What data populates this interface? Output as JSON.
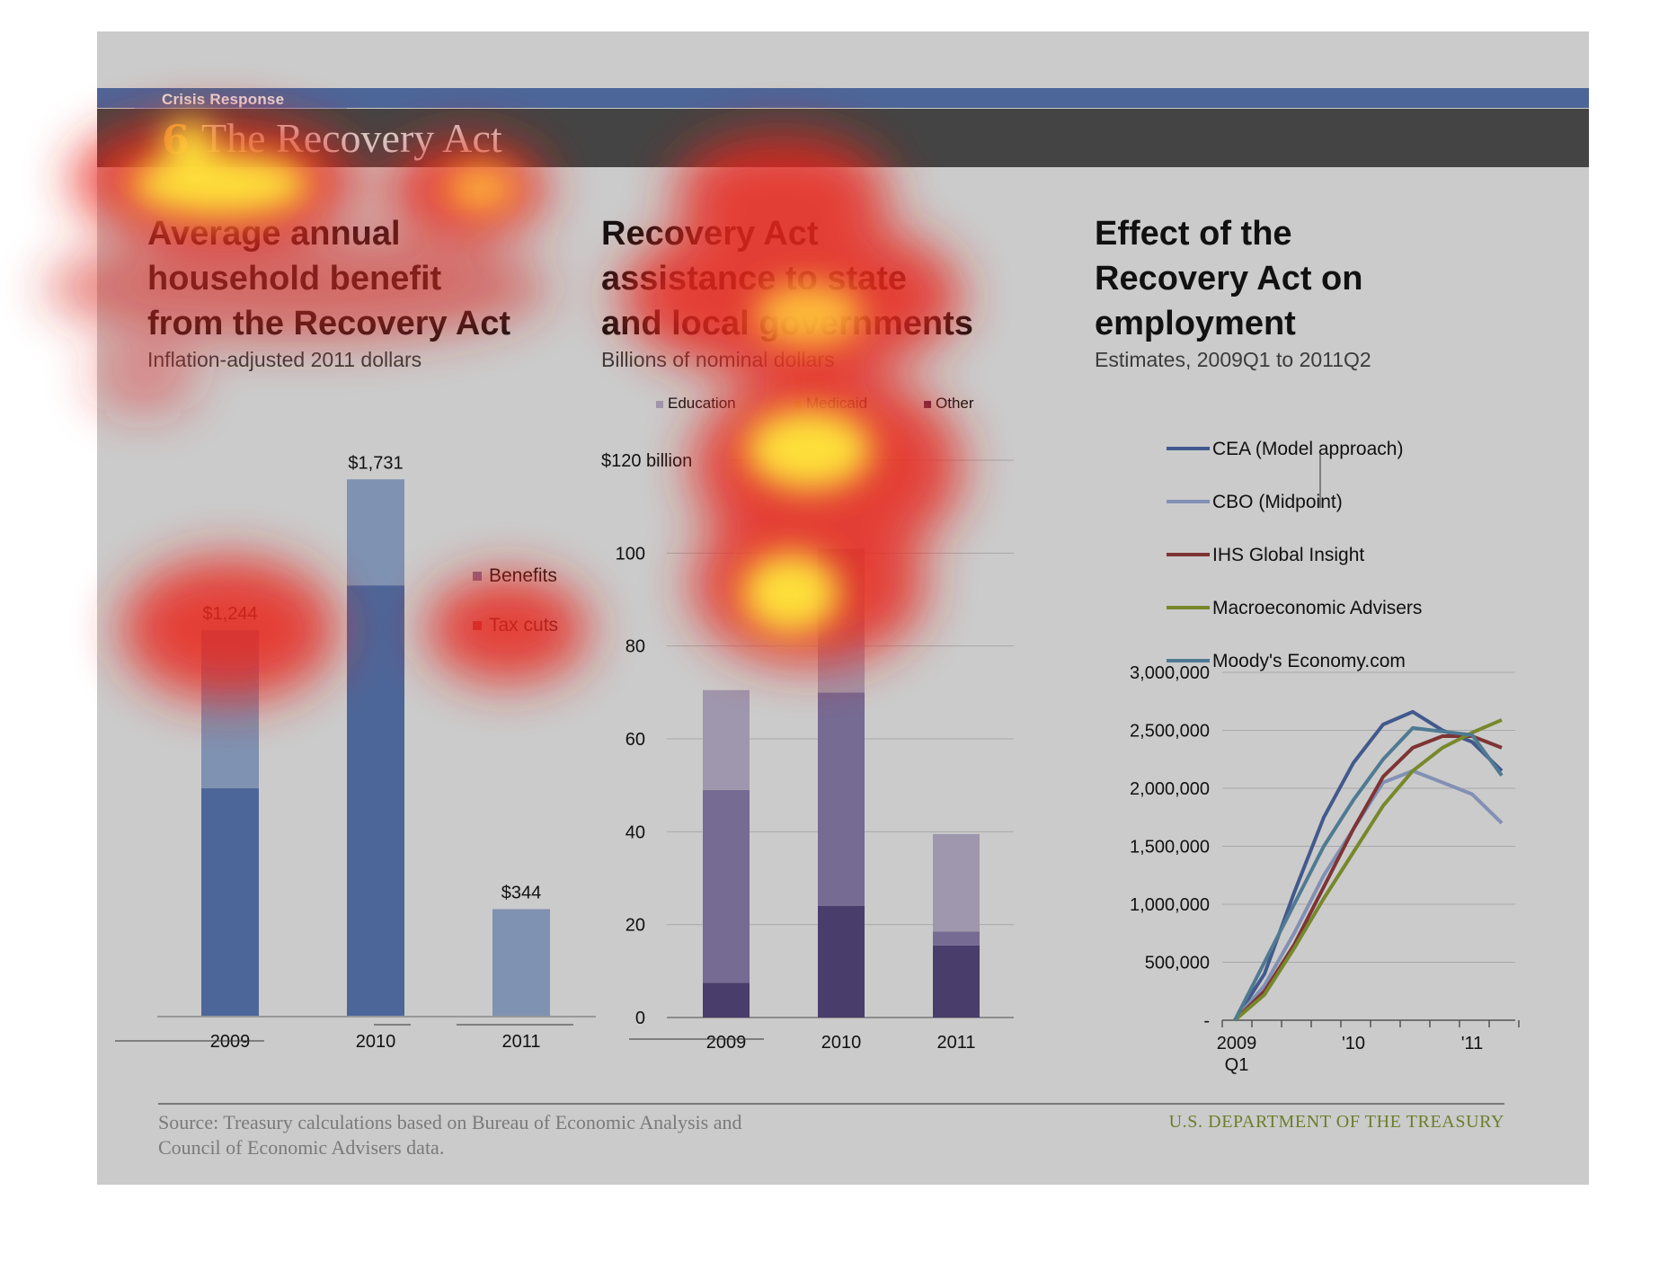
{
  "header": {
    "section_label": "Crisis Response",
    "slide_number": "6",
    "slide_title": "The Recovery Act"
  },
  "panels": [
    {
      "title": "Average annual household benefit from the Recovery Act",
      "title_lines": [
        "Average annual",
        "household benefit",
        "from the Recovery Act"
      ],
      "subtitle": "Inflation-adjusted 2011 dollars"
    },
    {
      "title": "Recovery Act assistance to state and local governments",
      "title_lines": [
        "Recovery Act",
        "assistance to state",
        "and local governments"
      ],
      "subtitle": "Billions of nominal dollars"
    },
    {
      "title": "Effect of the Recovery Act on employment",
      "title_lines": [
        "Effect of the",
        "Recovery Act on",
        "employment"
      ],
      "subtitle": "Estimates, 2009Q1 to 2011Q2"
    }
  ],
  "footer": {
    "source_line1": "Source: Treasury calculations based on Bureau of Economic Analysis and",
    "source_line2": "Council of Economic Advisers data.",
    "agency": "U.S. DEPARTMENT OF THE TREASURY"
  },
  "colors": {
    "slide_bg": "#cbcbcb",
    "top_band": "#4c6699",
    "title_band": "#444444",
    "slide_number": "#e8a640",
    "agency_text": "#6b7e2a"
  },
  "chart_data": [
    {
      "type": "bar",
      "stacked": true,
      "categories": [
        "2009",
        "2010",
        "2011"
      ],
      "series": [
        {
          "name": "Tax cuts",
          "color": "#4d6699",
          "values": [
            734,
            1389,
            0
          ]
        },
        {
          "name": "Benefits",
          "color": "#7f92b2",
          "values": [
            510,
            342,
            344
          ]
        }
      ],
      "totals": [
        1244,
        1731,
        344
      ],
      "data_labels": [
        "$1,244",
        "$1,731",
        "$344"
      ],
      "legend": [
        "Benefits",
        "Tax cuts"
      ],
      "legend_colors": [
        "#7b6e92",
        "#a5404e"
      ],
      "ylim": [
        0,
        1900
      ],
      "grid": false
    },
    {
      "type": "bar",
      "stacked": true,
      "categories": [
        "2009",
        "2010",
        "2011"
      ],
      "series": [
        {
          "name": "Other",
          "color": "#483d6b",
          "values": [
            7.5,
            24,
            15.5
          ]
        },
        {
          "name": "Medicaid",
          "color": "#766b93",
          "values": [
            41.5,
            46,
            3
          ]
        },
        {
          "name": "Education",
          "color": "#9f97ad",
          "values": [
            21.5,
            31,
            21
          ]
        }
      ],
      "legend": [
        "Education",
        "Medicaid",
        "Other"
      ],
      "ytick_labels": [
        "0",
        "20",
        "40",
        "60",
        "80",
        "100",
        "$120 billion"
      ],
      "yticks": [
        0,
        20,
        40,
        60,
        80,
        100,
        120
      ],
      "ylim": [
        0,
        120
      ],
      "grid": true
    },
    {
      "type": "line",
      "x_labels": [
        "2009",
        "Q1",
        "'10",
        "'11"
      ],
      "quarters": [
        "2009Q1",
        "2009Q2",
        "2009Q3",
        "2009Q4",
        "2010Q1",
        "2010Q2",
        "2010Q3",
        "2010Q4",
        "2011Q1",
        "2011Q2"
      ],
      "ylim": [
        0,
        3000000
      ],
      "ytick_labels": [
        "-",
        "500,000",
        "1,000,000",
        "1,500,000",
        "2,000,000",
        "2,500,000",
        "3,000,000"
      ],
      "yticks": [
        0,
        500000,
        1000000,
        1500000,
        2000000,
        2500000,
        3000000
      ],
      "grid": true,
      "legend_position": "top",
      "series": [
        {
          "name": "CEA (Model approach)",
          "color": "#42598d",
          "values": [
            0,
            400000,
            1100000,
            1750000,
            2220000,
            2550000,
            2660000,
            2500000,
            2400000,
            2150000
          ]
        },
        {
          "name": "CBO (Midpoint)",
          "color": "#8290b4",
          "values": [
            0,
            300000,
            750000,
            1250000,
            1650000,
            2050000,
            2150000,
            2050000,
            1950000,
            1700000
          ]
        },
        {
          "name": "IHS Global Insight",
          "color": "#7e3434",
          "values": [
            0,
            250000,
            650000,
            1150000,
            1650000,
            2100000,
            2350000,
            2450000,
            2450000,
            2350000
          ]
        },
        {
          "name": "Macroeconomic Advisers",
          "color": "#77882b",
          "values": [
            0,
            220000,
            620000,
            1050000,
            1450000,
            1850000,
            2150000,
            2350000,
            2480000,
            2590000
          ]
        },
        {
          "name": "Moody's Economy.com",
          "color": "#4f7a92",
          "values": [
            0,
            500000,
            1000000,
            1500000,
            1900000,
            2250000,
            2520000,
            2490000,
            2460000,
            2110000
          ]
        }
      ]
    }
  ]
}
